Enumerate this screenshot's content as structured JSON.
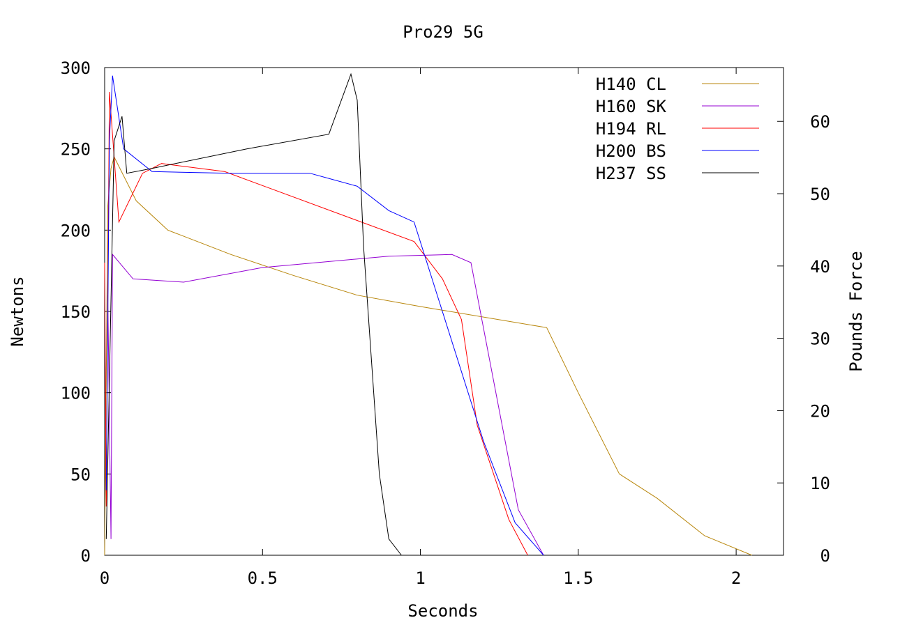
{
  "chart_data": {
    "type": "line",
    "title": "Pro29 5G",
    "xlabel": "Seconds",
    "ylabel": "Newtons",
    "y2label": "Pounds Force",
    "xlim": [
      0,
      2.15
    ],
    "ylim": [
      0,
      300
    ],
    "y2lim": [
      0,
      67.44
    ],
    "xticks": [
      {
        "value": 0,
        "label": "0"
      },
      {
        "value": 0.5,
        "label": "0.5"
      },
      {
        "value": 1,
        "label": "1"
      },
      {
        "value": 1.5,
        "label": "1.5"
      },
      {
        "value": 2,
        "label": "2"
      }
    ],
    "yticks": [
      {
        "value": 0,
        "label": "0"
      },
      {
        "value": 50,
        "label": "50"
      },
      {
        "value": 100,
        "label": "100"
      },
      {
        "value": 150,
        "label": "150"
      },
      {
        "value": 200,
        "label": "200"
      },
      {
        "value": 250,
        "label": "250"
      },
      {
        "value": 300,
        "label": "300"
      }
    ],
    "y2ticks": [
      {
        "value": 0,
        "label": "0"
      },
      {
        "value": 10,
        "label": "10"
      },
      {
        "value": 20,
        "label": "20"
      },
      {
        "value": 30,
        "label": "30"
      },
      {
        "value": 40,
        "label": "40"
      },
      {
        "value": 50,
        "label": "50"
      },
      {
        "value": 60,
        "label": "60"
      }
    ],
    "grid": false,
    "legend_position": "top-right",
    "series": [
      {
        "name": "H140 CL",
        "color": "#b8860b",
        "points": [
          [
            0,
            0
          ],
          [
            0.01,
            215
          ],
          [
            0.02,
            238
          ],
          [
            0.03,
            245
          ],
          [
            0.1,
            218
          ],
          [
            0.2,
            200
          ],
          [
            0.4,
            185
          ],
          [
            0.6,
            172
          ],
          [
            0.8,
            160
          ],
          [
            1.0,
            153
          ],
          [
            1.4,
            140
          ],
          [
            1.5,
            100
          ],
          [
            1.63,
            50
          ],
          [
            1.75,
            35
          ],
          [
            1.9,
            12
          ],
          [
            2.05,
            0
          ]
        ]
      },
      {
        "name": "H160 SK",
        "color": "#9400d3",
        "points": [
          [
            0.01,
            160
          ],
          [
            0.02,
            10
          ],
          [
            0.025,
            185
          ],
          [
            0.09,
            170
          ],
          [
            0.25,
            168
          ],
          [
            0.5,
            177
          ],
          [
            0.9,
            184
          ],
          [
            1.1,
            185
          ],
          [
            1.16,
            180
          ],
          [
            1.31,
            28
          ],
          [
            1.39,
            0
          ]
        ]
      },
      {
        "name": "H194 RL",
        "color": "#ff0000",
        "points": [
          [
            0,
            180
          ],
          [
            0.005,
            30
          ],
          [
            0.015,
            285
          ],
          [
            0.045,
            205
          ],
          [
            0.12,
            235
          ],
          [
            0.18,
            241
          ],
          [
            0.38,
            236
          ],
          [
            0.98,
            193
          ],
          [
            1.07,
            170
          ],
          [
            1.13,
            145
          ],
          [
            1.18,
            80
          ],
          [
            1.28,
            22
          ],
          [
            1.34,
            0
          ]
        ]
      },
      {
        "name": "H200 BS",
        "color": "#0000ff",
        "points": [
          [
            0.005,
            40
          ],
          [
            0.015,
            255
          ],
          [
            0.025,
            295
          ],
          [
            0.06,
            250
          ],
          [
            0.15,
            236
          ],
          [
            0.4,
            235
          ],
          [
            0.65,
            235
          ],
          [
            0.8,
            227
          ],
          [
            0.9,
            212
          ],
          [
            0.98,
            205
          ],
          [
            1.2,
            70
          ],
          [
            1.3,
            20
          ],
          [
            1.39,
            0
          ]
        ]
      },
      {
        "name": "H237 SS",
        "color": "#000000",
        "points": [
          [
            0.005,
            10
          ],
          [
            0.03,
            255
          ],
          [
            0.055,
            270
          ],
          [
            0.07,
            235
          ],
          [
            0.15,
            238
          ],
          [
            0.45,
            250
          ],
          [
            0.71,
            259
          ],
          [
            0.78,
            296
          ],
          [
            0.8,
            280
          ],
          [
            0.82,
            190
          ],
          [
            0.87,
            50
          ],
          [
            0.9,
            10
          ],
          [
            0.94,
            0
          ]
        ]
      }
    ]
  }
}
